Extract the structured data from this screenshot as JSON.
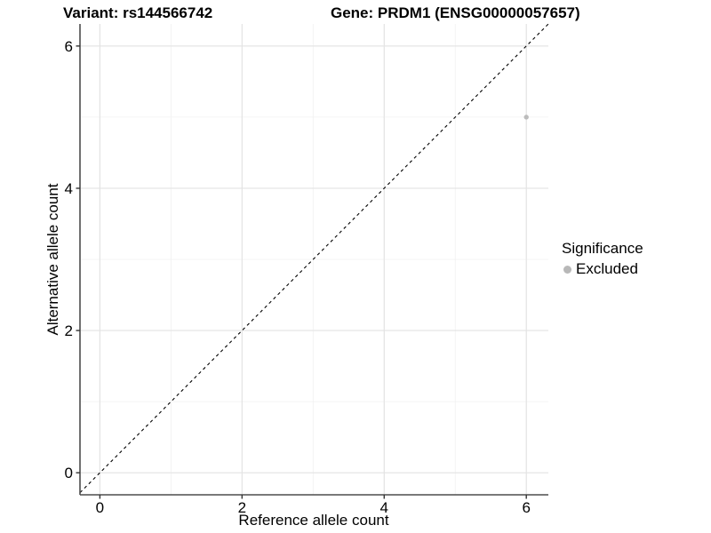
{
  "header": {
    "title_left": "Variant: rs144566742",
    "title_right": "Gene: PRDM1 (ENSG00000057657)"
  },
  "axes": {
    "x": {
      "label": "Reference allele count",
      "ticks": [
        0,
        2,
        4,
        6
      ]
    },
    "y": {
      "label": "Alternative allele count",
      "ticks": [
        0,
        2,
        4,
        6
      ]
    }
  },
  "legend": {
    "title": "Significance",
    "items": [
      {
        "label": "Excluded",
        "color": "#b8b8b8"
      }
    ]
  },
  "colors": {
    "grid_major": "#e3e3e3",
    "grid_minor": "#f1f1f1",
    "axis_line": "#4d4d4d",
    "tick_mark": "#333333",
    "point": "#bcbcbc",
    "identity_line": "#000000",
    "text": "#000000"
  },
  "chart_data": {
    "type": "scatter",
    "title_left": "Variant: rs144566742",
    "title_right": "Gene: PRDM1 (ENSG00000057657)",
    "xlabel": "Reference allele count",
    "ylabel": "Alternative allele count",
    "xlim": [
      -0.28,
      6.31
    ],
    "ylim": [
      -0.31,
      6.31
    ],
    "major_ticks_x": [
      0,
      2,
      4,
      6
    ],
    "minor_ticks_x": [
      1,
      3,
      5
    ],
    "major_ticks_y": [
      0,
      2,
      4,
      6
    ],
    "minor_ticks_y": [
      1,
      3,
      5
    ],
    "grid": true,
    "identity_line": {
      "slope": 1,
      "intercept": 0,
      "style": "dashed"
    },
    "series": [
      {
        "name": "Excluded",
        "points": [
          {
            "x": 6,
            "y": 5
          }
        ]
      }
    ],
    "legend_position": "right"
  }
}
